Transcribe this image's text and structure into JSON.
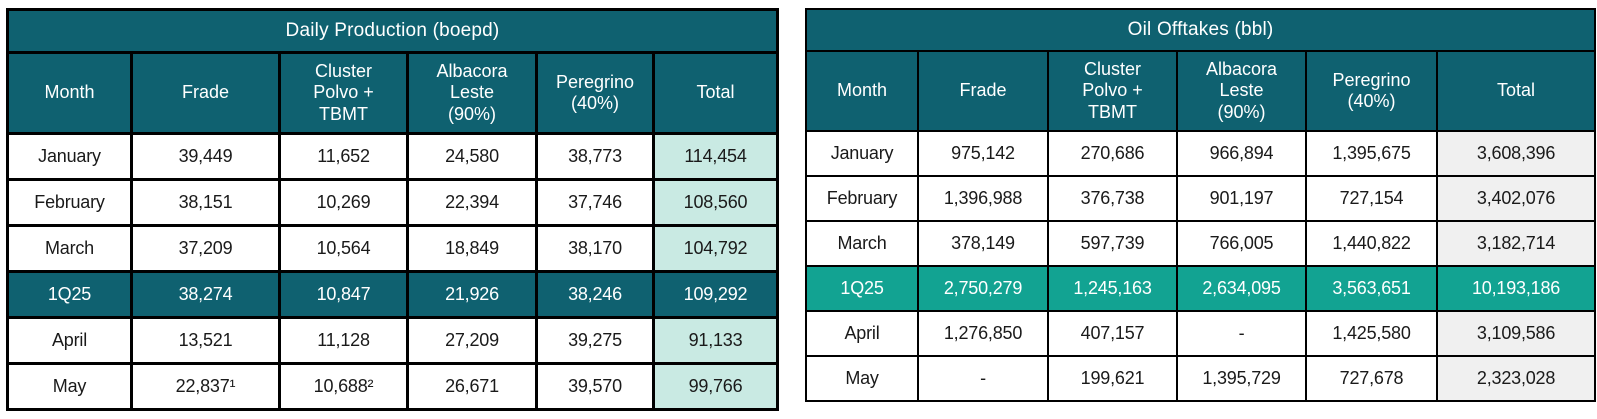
{
  "colors": {
    "header_teal": "#0F6170",
    "highlight_jade": "#12A392",
    "total_mint": "#C9EAE3",
    "total_gray": "#F0F0F0",
    "border": "#000000",
    "text": "#1A1A1A",
    "header_text": "#FFFFFF"
  },
  "tables": [
    {
      "title": "Daily Production (boepd)",
      "columns": [
        "Month",
        "Frade",
        "Cluster\nPolvo +\nTBMT",
        "Albacora\nLeste\n(90%)",
        "Peregrino\n(40%)",
        "Total"
      ],
      "rows": [
        {
          "label": "January",
          "values": [
            "39,449",
            "11,652",
            "24,580",
            "38,773",
            "114,454"
          ],
          "highlight": false
        },
        {
          "label": "February",
          "values": [
            "38,151",
            "10,269",
            "22,394",
            "37,746",
            "108,560"
          ],
          "highlight": false
        },
        {
          "label": "March",
          "values": [
            "37,209",
            "10,564",
            "18,849",
            "38,170",
            "104,792"
          ],
          "highlight": false
        },
        {
          "label": "1Q25",
          "values": [
            "38,274",
            "10,847",
            "21,926",
            "38,246",
            "109,292"
          ],
          "highlight": true
        },
        {
          "label": "April",
          "values": [
            "13,521",
            "11,128",
            "27,209",
            "39,275",
            "91,133"
          ],
          "highlight": false
        },
        {
          "label": "May",
          "values": [
            "22,837¹",
            "10,688²",
            "26,671",
            "39,570",
            "99,766"
          ],
          "highlight": false
        }
      ]
    },
    {
      "title": "Oil Offtakes (bbl)",
      "columns": [
        "Month",
        "Frade",
        "Cluster\nPolvo +\nTBMT",
        "Albacora\nLeste\n(90%)",
        "Peregrino\n(40%)",
        "Total"
      ],
      "rows": [
        {
          "label": "January",
          "values": [
            "975,142",
            "270,686",
            "966,894",
            "1,395,675",
            "3,608,396"
          ],
          "highlight": false
        },
        {
          "label": "February",
          "values": [
            "1,396,988",
            "376,738",
            "901,197",
            "727,154",
            "3,402,076"
          ],
          "highlight": false
        },
        {
          "label": "March",
          "values": [
            "378,149",
            "597,739",
            "766,005",
            "1,440,822",
            "3,182,714"
          ],
          "highlight": false
        },
        {
          "label": "1Q25",
          "values": [
            "2,750,279",
            "1,245,163",
            "2,634,095",
            "3,563,651",
            "10,193,186"
          ],
          "highlight": true
        },
        {
          "label": "April",
          "values": [
            "1,276,850",
            "407,157",
            "-",
            "1,425,580",
            "3,109,586"
          ],
          "highlight": false
        },
        {
          "label": "May",
          "values": [
            "-",
            "199,621",
            "1,395,729",
            "727,678",
            "2,323,028"
          ],
          "highlight": false
        }
      ]
    }
  ]
}
